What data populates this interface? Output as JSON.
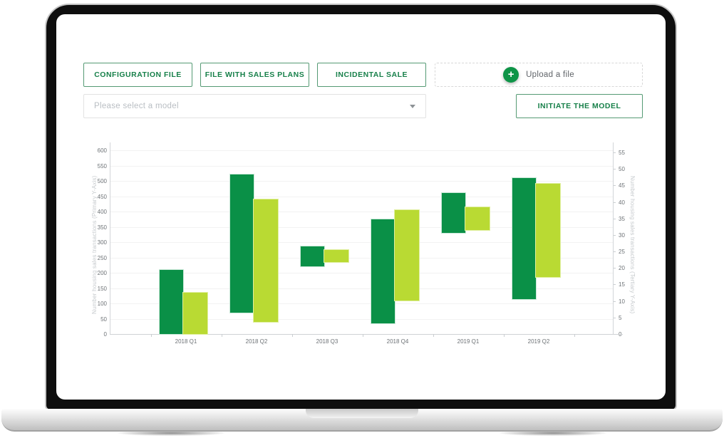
{
  "device": {
    "type": "laptop-mockup"
  },
  "toolbar": {
    "buttons": [
      {
        "label": "CONFIGURATION FILE"
      },
      {
        "label": "FILE WITH SALES PLANS"
      },
      {
        "label": "INCIDENTAL SALE"
      }
    ],
    "upload": {
      "label": "Upload a file",
      "icon": "plus-icon"
    },
    "model_select": {
      "placeholder": "Please select a model",
      "icon": "chevron-down-icon"
    },
    "initiate_button": {
      "label": "INITIATE THE MODEL"
    }
  },
  "chart_data": {
    "type": "bar",
    "subtype": "floating-range-bars",
    "title": "",
    "grid": true,
    "legend": false,
    "categories": [
      "2018 Q1",
      "2018 Q2",
      "2018 Q3",
      "2018 Q4",
      "2019 Q1",
      "2019 Q2"
    ],
    "series": [
      {
        "name": "dark-green-series",
        "color": "#0a9047",
        "axis": "primary",
        "ranges": [
          [
            0,
            210
          ],
          [
            70,
            520
          ],
          [
            220,
            285
          ],
          [
            35,
            375
          ],
          [
            330,
            460
          ],
          [
            115,
            510
          ]
        ]
      },
      {
        "name": "light-green-series",
        "color": "#b9da33",
        "axis": "primary",
        "ranges": [
          [
            0,
            135
          ],
          [
            40,
            440
          ],
          [
            235,
            275
          ],
          [
            110,
            405
          ],
          [
            340,
            415
          ],
          [
            185,
            490
          ]
        ]
      }
    ],
    "primary_axis": {
      "label": "Number housing sales transactions (Primary Y-Axis)",
      "min": 0,
      "max": 600,
      "step": 50,
      "ticks": [
        0,
        50,
        100,
        150,
        200,
        250,
        300,
        350,
        400,
        450,
        500,
        550,
        600
      ]
    },
    "tertiary_axis": {
      "label": "Number housing sales transactions (Tertiary Y-Axis)",
      "min": 0,
      "max": 55,
      "step": 5,
      "ticks": [
        0,
        5,
        10,
        15,
        20,
        25,
        30,
        35,
        40,
        45,
        50,
        55
      ]
    }
  },
  "colors": {
    "accent_green": "#17804a",
    "button_border_green": "#559a74",
    "bar_dark_green": "#0a9047",
    "bar_light_green": "#b9da33",
    "upload_circle_green": "#0e9447",
    "placeholder_gray": "#b9bec3",
    "tick_label_gray": "#6d7276",
    "axis_title_gray": "#c6cacd"
  }
}
